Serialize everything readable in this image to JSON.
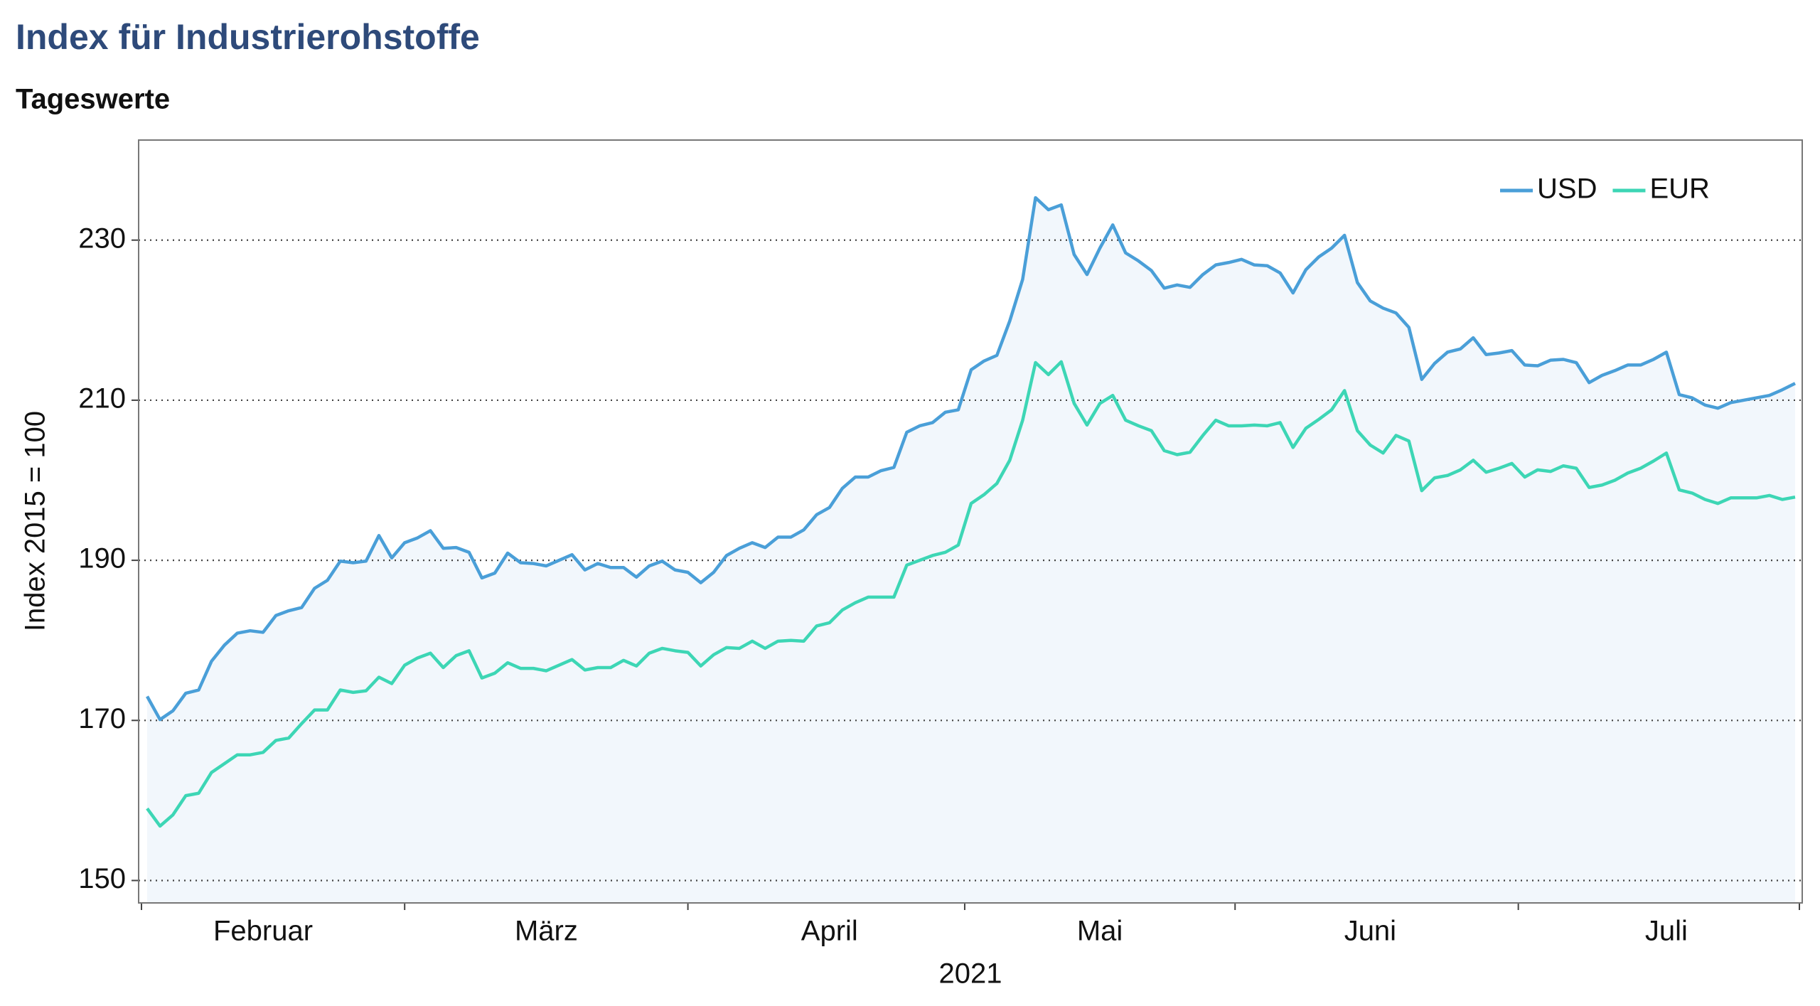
{
  "chart_data": {
    "type": "line",
    "title": "Index für Industrierohstoffe",
    "subtitle": "Tageswerte",
    "y_label": "Index 2015 = 100",
    "x_label": "2021",
    "categories": [
      null,
      null,
      null,
      null,
      null,
      null,
      null,
      null,
      null,
      "Februar",
      null,
      null,
      null,
      null,
      null,
      null,
      null,
      null,
      null,
      null,
      null,
      null,
      null,
      null,
      null,
      null,
      null,
      null,
      null,
      null,
      null,
      "März",
      null,
      null,
      null,
      null,
      null,
      null,
      null,
      null,
      null,
      null,
      null,
      null,
      null,
      null,
      null,
      null,
      null,
      null,
      null,
      null,
      null,
      "April",
      null,
      null,
      null,
      null,
      null,
      null,
      null,
      null,
      null,
      null,
      null,
      null,
      null,
      null,
      null,
      null,
      null,
      null,
      null,
      null,
      "Mai",
      null,
      null,
      null,
      null,
      null,
      null,
      null,
      null,
      null,
      null,
      null,
      null,
      null,
      null,
      null,
      null,
      null,
      null,
      null,
      null,
      "Juni",
      null,
      null,
      null,
      null,
      null,
      null,
      null,
      null,
      null,
      null,
      null,
      null,
      null,
      null,
      null,
      null,
      null,
      null,
      null,
      null,
      null,
      null,
      "Juli",
      null,
      null,
      null,
      null,
      null,
      null,
      null,
      null,
      null,
      null
    ],
    "series": [
      {
        "name": "USD",
        "color": "#4a9fd8",
        "values": [
          173.0,
          170.1,
          171.2,
          173.4,
          173.8,
          177.4,
          179.4,
          180.9,
          181.2,
          181.0,
          183.1,
          183.7,
          184.1,
          186.5,
          187.5,
          189.9,
          189.7,
          189.9,
          193.1,
          190.3,
          192.2,
          192.8,
          193.7,
          191.5,
          191.6,
          191.0,
          187.8,
          188.4,
          190.9,
          189.7,
          189.6,
          189.3,
          190.0,
          190.7,
          188.8,
          189.6,
          189.1,
          189.1,
          187.9,
          189.3,
          189.9,
          188.8,
          188.5,
          187.2,
          188.5,
          190.6,
          191.5,
          192.2,
          191.6,
          192.9,
          192.9,
          193.8,
          195.7,
          196.6,
          199.0,
          200.4,
          200.4,
          201.2,
          201.6,
          206.0,
          206.8,
          207.2,
          208.5,
          208.8,
          213.8,
          214.9,
          215.6,
          219.9,
          225.1,
          235.3,
          233.8,
          234.4,
          228.2,
          225.7,
          229.0,
          231.9,
          228.4,
          227.4,
          226.2,
          224.0,
          224.4,
          224.1,
          225.7,
          226.9,
          227.2,
          227.6,
          226.9,
          226.8,
          225.9,
          223.4,
          226.3,
          227.9,
          229.0,
          230.6,
          224.7,
          222.4,
          221.5,
          220.9,
          219.1,
          212.6,
          214.6,
          216.0,
          216.4,
          217.8,
          215.7,
          215.9,
          216.2,
          214.4,
          214.3,
          215.0,
          215.1,
          214.7,
          212.2,
          213.1,
          213.7,
          214.4,
          214.4,
          215.1,
          216.0,
          210.7,
          210.3,
          209.4,
          209.0,
          209.7,
          210.0,
          210.3,
          210.6,
          211.3,
          212.1
        ]
      },
      {
        "name": "EUR",
        "color": "#3dd6b5",
        "values": [
          159.0,
          156.8,
          158.2,
          160.6,
          160.9,
          163.5,
          164.6,
          165.7,
          165.7,
          166.0,
          167.5,
          167.8,
          169.6,
          171.3,
          171.3,
          173.8,
          173.5,
          173.7,
          175.4,
          174.6,
          176.9,
          177.8,
          178.4,
          176.6,
          178.1,
          178.7,
          175.3,
          175.9,
          177.2,
          176.5,
          176.5,
          176.2,
          176.9,
          177.6,
          176.3,
          176.6,
          176.6,
          177.5,
          176.8,
          178.4,
          179.0,
          178.7,
          178.5,
          176.8,
          178.2,
          179.1,
          179.0,
          179.9,
          179.0,
          179.9,
          180.0,
          179.9,
          181.8,
          182.2,
          183.8,
          184.7,
          185.4,
          185.4,
          185.4,
          189.4,
          190.0,
          190.6,
          191.0,
          191.9,
          197.1,
          198.2,
          199.6,
          202.5,
          207.5,
          214.7,
          213.2,
          214.8,
          209.6,
          206.9,
          209.6,
          210.6,
          207.5,
          206.8,
          206.2,
          203.7,
          203.2,
          203.5,
          205.6,
          207.5,
          206.8,
          206.8,
          206.9,
          206.8,
          207.2,
          204.1,
          206.5,
          207.6,
          208.8,
          211.2,
          206.2,
          204.4,
          203.4,
          205.6,
          204.9,
          198.7,
          200.3,
          200.6,
          201.3,
          202.5,
          201.0,
          201.5,
          202.1,
          200.4,
          201.3,
          201.1,
          201.8,
          201.5,
          199.1,
          199.4,
          200.0,
          200.9,
          201.5,
          202.4,
          203.4,
          198.8,
          198.4,
          197.6,
          197.1,
          197.8,
          197.8,
          197.8,
          198.1,
          197.6,
          197.9
        ]
      }
    ],
    "ylim": [
      147.2,
      242.5
    ],
    "yticks": [
      150,
      170,
      190,
      210,
      230
    ],
    "grid": true,
    "legend": "upper right",
    "area_fill": "#f2f7fc"
  }
}
